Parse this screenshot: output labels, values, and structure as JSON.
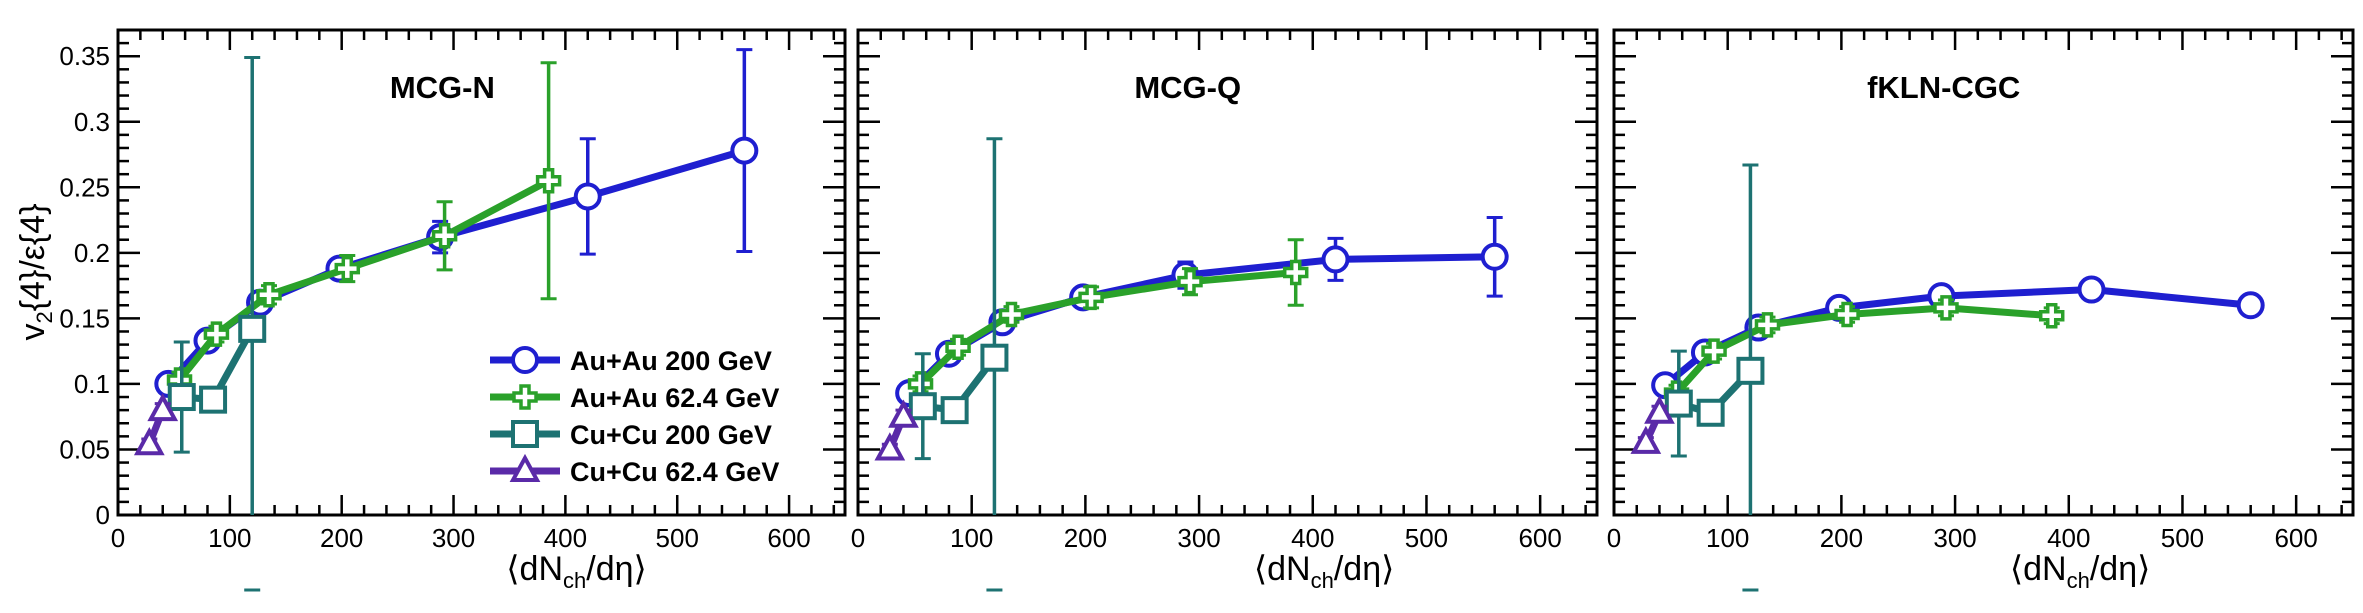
{
  "colors": {
    "auau200": "#1f1fd0",
    "auau62": "#2aa12a",
    "cucu200": "#1d7272",
    "cucu62": "#5a2aa8"
  },
  "chart_data": {
    "type": "line",
    "ylabel_main": "v",
    "ylabel_sub": "2",
    "ylabel_rest": "{4}/ε{4}",
    "xlabel_main": "⟨dN",
    "xlabel_sub": "ch",
    "xlabel_rest": "/dη⟩",
    "xlim": [
      0,
      650
    ],
    "ylim": [
      0,
      0.37
    ],
    "xticks": [
      0,
      100,
      200,
      300,
      400,
      500,
      600
    ],
    "yticks": [
      0,
      0.05,
      0.1,
      0.15,
      0.2,
      0.25,
      0.3,
      0.35
    ],
    "ytick_labels": [
      "0",
      "0.05",
      "0.1",
      "0.15",
      "0.2",
      "0.25",
      "0.3",
      "0.35"
    ],
    "legend": {
      "position": "inside-panel-1-bottom-right",
      "entries": [
        "Au+Au 200 GeV",
        "Au+Au 62.4 GeV",
        "Cu+Cu 200 GeV",
        "Cu+Cu 62.4 GeV"
      ]
    },
    "panels": [
      {
        "title": "MCG-N",
        "series": [
          {
            "name": "Au+Au 200 GeV",
            "color_key": "auau200",
            "marker": "circle",
            "x": [
              45,
              80,
              127,
              198,
              288,
              420,
              560
            ],
            "y": [
              0.1,
              0.133,
              0.162,
              0.188,
              0.212,
              0.243,
              0.278
            ],
            "err": [
              0.005,
              0.005,
              0.005,
              0.005,
              0.012,
              0.044,
              0.077
            ]
          },
          {
            "name": "Au+Au 62.4 GeV",
            "color_key": "auau62",
            "marker": "cross",
            "x": [
              55,
              88,
              135,
              205,
              292,
              385
            ],
            "y": [
              0.103,
              0.138,
              0.168,
              0.188,
              0.213,
              0.255
            ],
            "err": [
              0.006,
              0.006,
              0.007,
              0.01,
              0.026,
              0.09
            ]
          },
          {
            "name": "Cu+Cu 200 GeV",
            "color_key": "cucu200",
            "marker": "square",
            "x": [
              57,
              85,
              120
            ],
            "y": [
              0.09,
              0.088,
              0.142
            ],
            "err": [
              0.042,
              0.007,
              0.207
            ]
          },
          {
            "name": "Cu+Cu 62.4 GeV",
            "color_key": "cucu62",
            "marker": "triangle",
            "x": [
              28,
              40
            ],
            "y": [
              0.054,
              0.08
            ],
            "err": [
              0.004,
              0.005
            ]
          }
        ]
      },
      {
        "title": "MCG-Q",
        "series": [
          {
            "name": "Au+Au 200 GeV",
            "color_key": "auau200",
            "marker": "circle",
            "x": [
              45,
              80,
              127,
              198,
              288,
              420,
              560
            ],
            "y": [
              0.093,
              0.123,
              0.147,
              0.166,
              0.183,
              0.195,
              0.197
            ],
            "err": [
              0.005,
              0.005,
              0.005,
              0.005,
              0.01,
              0.016,
              0.03
            ]
          },
          {
            "name": "Au+Au 62.4 GeV",
            "color_key": "auau62",
            "marker": "cross",
            "x": [
              55,
              88,
              135,
              205,
              292,
              385
            ],
            "y": [
              0.1,
              0.128,
              0.153,
              0.166,
              0.178,
              0.185
            ],
            "err": [
              0.006,
              0.006,
              0.006,
              0.008,
              0.01,
              0.025
            ]
          },
          {
            "name": "Cu+Cu 200 GeV",
            "color_key": "cucu200",
            "marker": "square",
            "x": [
              57,
              85,
              120
            ],
            "y": [
              0.083,
              0.08,
              0.12
            ],
            "err": [
              0.04,
              0.007,
              0.167
            ]
          },
          {
            "name": "Cu+Cu 62.4 GeV",
            "color_key": "cucu62",
            "marker": "triangle",
            "x": [
              28,
              40
            ],
            "y": [
              0.05,
              0.075
            ],
            "err": [
              0.004,
              0.005
            ]
          }
        ]
      },
      {
        "title": "fKLN-CGC",
        "series": [
          {
            "name": "Au+Au 200 GeV",
            "color_key": "auau200",
            "marker": "circle",
            "x": [
              45,
              80,
              127,
              198,
              288,
              420,
              560
            ],
            "y": [
              0.099,
              0.124,
              0.143,
              0.158,
              0.167,
              0.172,
              0.16
            ],
            "err": [
              0.005,
              0.005,
              0.005,
              0.005,
              0.005,
              0.005,
              0.005
            ]
          },
          {
            "name": "Au+Au 62.4 GeV",
            "color_key": "auau62",
            "marker": "cross",
            "x": [
              55,
              88,
              135,
              205,
              292,
              385
            ],
            "y": [
              0.093,
              0.125,
              0.145,
              0.153,
              0.158,
              0.152
            ],
            "err": [
              0.006,
              0.006,
              0.006,
              0.006,
              0.006,
              0.006
            ]
          },
          {
            "name": "Cu+Cu 200 GeV",
            "color_key": "cucu200",
            "marker": "square",
            "x": [
              57,
              85,
              120
            ],
            "y": [
              0.085,
              0.078,
              0.11
            ],
            "err": [
              0.04,
              0.007,
              0.157
            ]
          },
          {
            "name": "Cu+Cu 62.4 GeV",
            "color_key": "cucu62",
            "marker": "triangle",
            "x": [
              28,
              40
            ],
            "y": [
              0.055,
              0.078
            ],
            "err": [
              0.004,
              0.005
            ]
          }
        ]
      }
    ]
  }
}
